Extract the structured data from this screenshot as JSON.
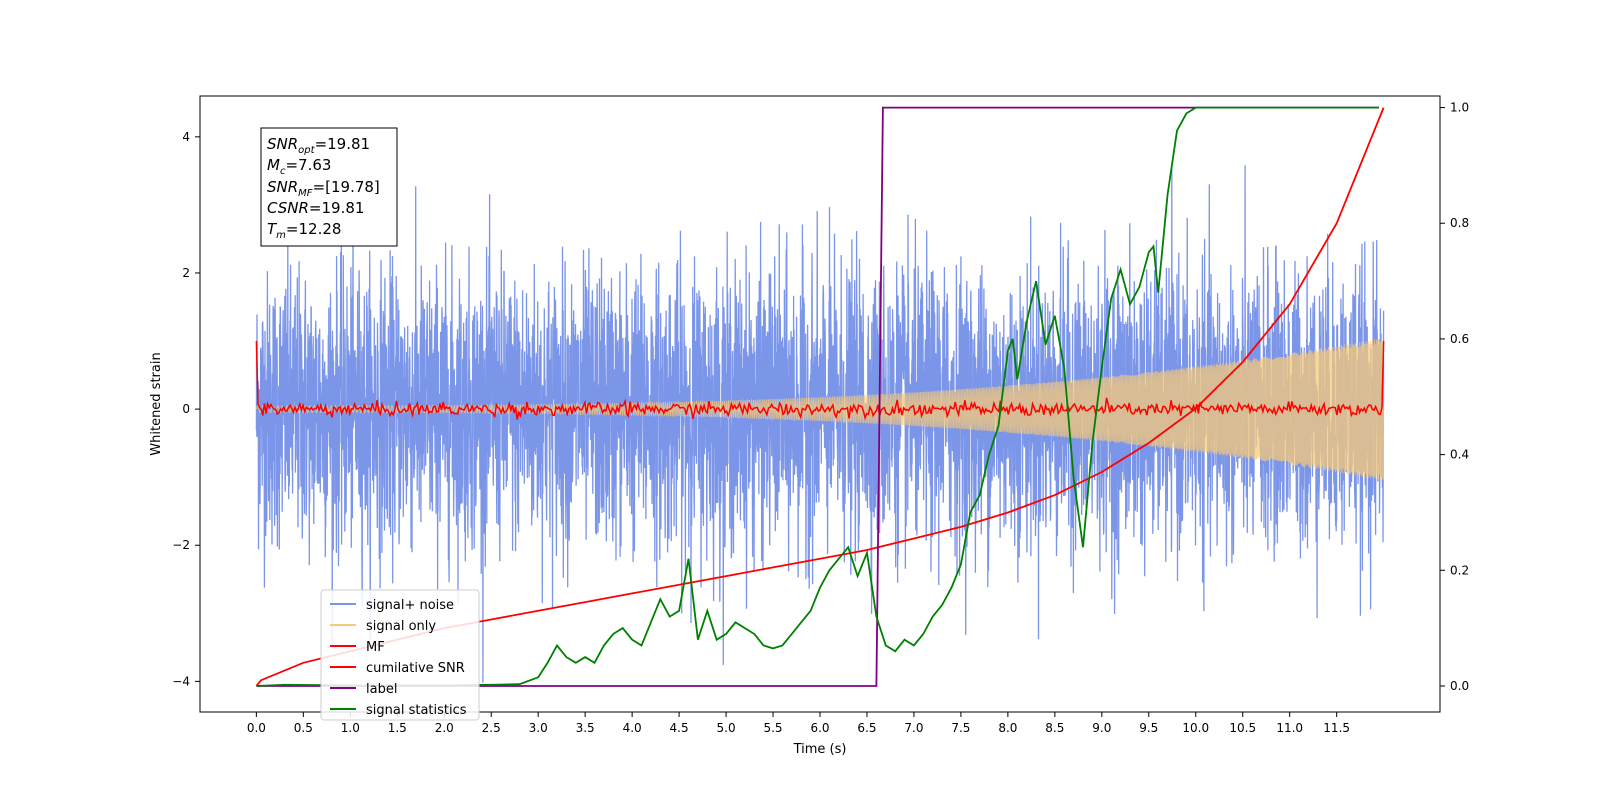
{
  "chart_data": {
    "type": "line",
    "xlabel": "Time (s)",
    "ylabel": "Whitened strain",
    "xlim": [
      -0.6,
      12.6
    ],
    "ylim": [
      -4.45,
      4.6
    ],
    "y2lim": [
      -0.045,
      1.02
    ],
    "xticks": [
      "0.0",
      "0.5",
      "1.0",
      "1.5",
      "2.0",
      "2.5",
      "3.0",
      "3.5",
      "4.0",
      "4.5",
      "5.0",
      "5.5",
      "6.0",
      "6.5",
      "7.0",
      "7.5",
      "8.0",
      "8.5",
      "9.0",
      "9.5",
      "10.0",
      "10.5",
      "11.0",
      "11.5"
    ],
    "yticks": [
      "-4",
      "-2",
      "0",
      "2",
      "4"
    ],
    "y2ticks": [
      "0.0",
      "0.2",
      "0.4",
      "0.6",
      "0.8",
      "1.0"
    ],
    "grid": false,
    "legend_position": "lower-left",
    "annotation": {
      "lines": [
        {
          "base": "SNR",
          "sub": "opt",
          "value": "=19.81"
        },
        {
          "base": "M",
          "sub": "c",
          "value": "=7.63"
        },
        {
          "base": "SNR",
          "sub": "MF",
          "value": "=[19.78]"
        },
        {
          "base": "CSNR",
          "sub": "",
          "value": "=19.81"
        },
        {
          "base": "T",
          "sub": "m",
          "value": "=12.28"
        }
      ]
    },
    "series": [
      {
        "name": "signal+ noise",
        "color": "#7b95e8",
        "axis": "left",
        "x_range": [
          0,
          12.0
        ],
        "std": 1.0,
        "max_abs": 4.1
      },
      {
        "name": "signal only",
        "color": "#f5c97a",
        "axis": "left",
        "x_range": [
          0,
          12.0
        ],
        "envelope_start": 0.05,
        "envelope_end": 1.05
      },
      {
        "name": "MF",
        "color": "#ff0000",
        "axis": "left",
        "x_range": [
          0,
          12.0
        ],
        "start_value": 1.0,
        "end_value": 1.0,
        "noise_level": 0.05
      },
      {
        "name": "cumilative SNR",
        "color": "#ff0000",
        "axis": "right",
        "x": [
          0.0,
          0.05,
          0.5,
          1.0,
          1.5,
          2.0,
          2.5,
          3.0,
          3.5,
          4.0,
          4.5,
          5.0,
          5.5,
          6.0,
          6.5,
          7.0,
          7.5,
          8.0,
          8.5,
          9.0,
          9.5,
          10.0,
          10.5,
          11.0,
          11.5,
          12.0
        ],
        "values": [
          0.0,
          0.01,
          0.04,
          0.06,
          0.08,
          0.1,
          0.115,
          0.13,
          0.145,
          0.16,
          0.175,
          0.19,
          0.205,
          0.22,
          0.235,
          0.255,
          0.275,
          0.3,
          0.33,
          0.37,
          0.42,
          0.48,
          0.56,
          0.66,
          0.8,
          1.0
        ]
      },
      {
        "name": "label",
        "color": "#800080",
        "axis": "right",
        "x": [
          0.0,
          6.6,
          6.67,
          11.95
        ],
        "values": [
          0.0,
          0.0,
          1.0,
          1.0
        ]
      },
      {
        "name": "signal statistics",
        "color": "#008000",
        "axis": "right",
        "x": [
          0.0,
          0.3,
          1.0,
          2.0,
          2.5,
          2.8,
          3.0,
          3.1,
          3.2,
          3.3,
          3.4,
          3.5,
          3.6,
          3.7,
          3.8,
          3.9,
          4.0,
          4.1,
          4.2,
          4.3,
          4.4,
          4.5,
          4.6,
          4.7,
          4.8,
          4.9,
          5.0,
          5.1,
          5.2,
          5.3,
          5.4,
          5.5,
          5.6,
          5.7,
          5.8,
          5.9,
          6.0,
          6.1,
          6.2,
          6.3,
          6.4,
          6.5,
          6.6,
          6.7,
          6.8,
          6.9,
          7.0,
          7.1,
          7.2,
          7.3,
          7.4,
          7.5,
          7.6,
          7.7,
          7.8,
          7.9,
          8.0,
          8.05,
          8.1,
          8.2,
          8.3,
          8.4,
          8.5,
          8.6,
          8.7,
          8.8,
          8.9,
          9.0,
          9.1,
          9.2,
          9.3,
          9.4,
          9.5,
          9.55,
          9.6,
          9.7,
          9.8,
          9.9,
          10.0,
          10.2,
          10.5,
          11.0,
          11.5,
          11.95
        ],
        "values": [
          0.0,
          0.002,
          0.001,
          0.001,
          0.002,
          0.003,
          0.015,
          0.04,
          0.07,
          0.05,
          0.04,
          0.05,
          0.04,
          0.07,
          0.09,
          0.1,
          0.08,
          0.07,
          0.11,
          0.15,
          0.12,
          0.13,
          0.22,
          0.08,
          0.13,
          0.08,
          0.09,
          0.11,
          0.1,
          0.09,
          0.07,
          0.065,
          0.07,
          0.09,
          0.11,
          0.13,
          0.17,
          0.2,
          0.22,
          0.24,
          0.19,
          0.23,
          0.12,
          0.07,
          0.06,
          0.08,
          0.07,
          0.09,
          0.12,
          0.14,
          0.17,
          0.21,
          0.3,
          0.33,
          0.4,
          0.45,
          0.58,
          0.6,
          0.53,
          0.63,
          0.7,
          0.59,
          0.64,
          0.55,
          0.36,
          0.24,
          0.42,
          0.55,
          0.67,
          0.72,
          0.66,
          0.69,
          0.75,
          0.76,
          0.68,
          0.85,
          0.96,
          0.99,
          1.0,
          1.0,
          1.0,
          1.0,
          1.0,
          1.0
        ]
      }
    ]
  }
}
